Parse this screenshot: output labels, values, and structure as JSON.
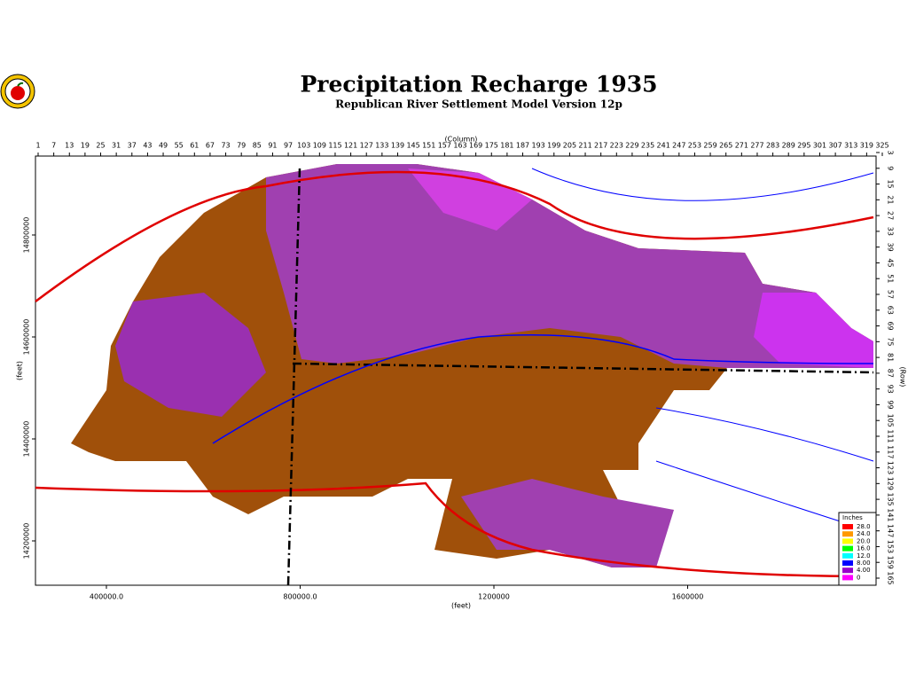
{
  "header": {
    "title": "Precipitation Recharge 1935",
    "subtitle": "Republican River Settlement Model Version 12p"
  },
  "axes": {
    "column_label": "(Column)",
    "row_label": "(Row)",
    "x_feet_label": "(feet)",
    "y_feet_label": "(feet)",
    "columns": [
      1,
      7,
      13,
      19,
      25,
      31,
      37,
      43,
      49,
      55,
      61,
      67,
      73,
      79,
      85,
      91,
      97,
      103,
      109,
      115,
      121,
      127,
      133,
      139,
      145,
      151,
      157,
      163,
      169,
      175,
      181,
      187,
      193,
      199,
      205,
      211,
      217,
      223,
      229,
      235,
      241,
      247,
      253,
      259,
      265,
      271,
      277,
      283,
      289,
      295,
      301,
      307,
      313,
      319,
      325
    ],
    "rows": [
      3,
      9,
      15,
      21,
      27,
      33,
      39,
      45,
      51,
      57,
      63,
      69,
      75,
      81,
      87,
      93,
      99,
      105,
      111,
      117,
      123,
      129,
      135,
      141,
      147,
      153,
      159,
      165
    ],
    "x_feet": [
      {
        "value": 400000,
        "label": "400000.0"
      },
      {
        "value": 800000,
        "label": "800000.0"
      },
      1200000,
      1600000
    ],
    "y_feet": [
      14800000,
      14600000,
      14400000,
      14200000
    ]
  },
  "legend": {
    "title": "Inches",
    "entries": [
      {
        "value": 28,
        "label": "28.0",
        "color": "#ff0000"
      },
      {
        "value": 24,
        "label": "24.0",
        "color": "#ff9900"
      },
      {
        "value": 20,
        "label": "20.0",
        "color": "#ffff00"
      },
      {
        "value": 16,
        "label": "16.0",
        "color": "#00ff00"
      },
      {
        "value": 12,
        "label": "12.0",
        "color": "#00ffff"
      },
      {
        "value": 8,
        "label": "8.00",
        "color": "#0000ff"
      },
      {
        "value": 4,
        "label": "4.00",
        "color": "#9900cc"
      },
      {
        "value": 0,
        "label": "0",
        "color": "#ff00ff"
      }
    ]
  }
}
